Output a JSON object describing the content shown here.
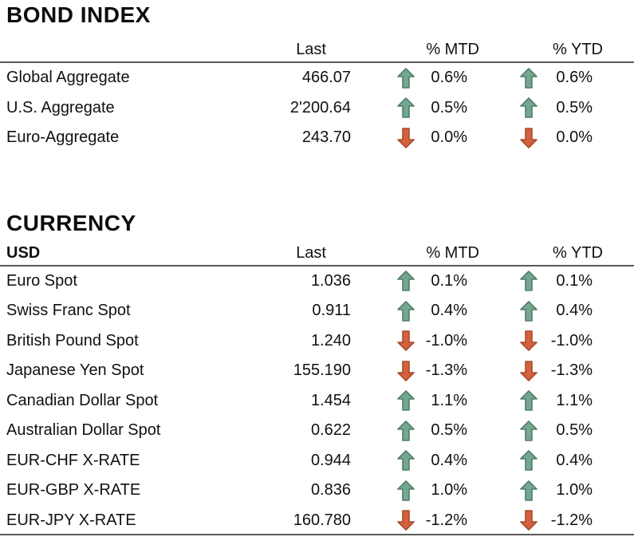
{
  "colors": {
    "up_fill": "#74A690",
    "up_stroke": "#4F7F69",
    "down_fill": "#D4613D",
    "down_stroke": "#A84C2E",
    "rule": "#595959"
  },
  "bond_index": {
    "title": "BOND INDEX",
    "columns": {
      "last": "Last",
      "mtd": "% MTD",
      "ytd": "% YTD"
    },
    "rows": [
      {
        "name": "Global Aggregate",
        "last": "466.07",
        "mtd": "0.6%",
        "mtd_dir": "up",
        "ytd": "0.6%",
        "ytd_dir": "up"
      },
      {
        "name": "U.S. Aggregate",
        "last": "2'200.64",
        "mtd": "0.5%",
        "mtd_dir": "up",
        "ytd": "0.5%",
        "ytd_dir": "up"
      },
      {
        "name": "Euro-Aggregate",
        "last": "243.70",
        "mtd": "0.0%",
        "mtd_dir": "down",
        "ytd": "0.0%",
        "ytd_dir": "down"
      }
    ]
  },
  "currency": {
    "title": "CURRENCY",
    "base": "USD",
    "columns": {
      "last": "Last",
      "mtd": "% MTD",
      "ytd": "% YTD"
    },
    "rows": [
      {
        "name": "Euro Spot",
        "last": "1.036",
        "mtd": "0.1%",
        "mtd_dir": "up",
        "ytd": "0.1%",
        "ytd_dir": "up"
      },
      {
        "name": "Swiss Franc Spot",
        "last": "0.911",
        "mtd": "0.4%",
        "mtd_dir": "up",
        "ytd": "0.4%",
        "ytd_dir": "up"
      },
      {
        "name": "British Pound Spot",
        "last": "1.240",
        "mtd": "-1.0%",
        "mtd_dir": "down",
        "ytd": "-1.0%",
        "ytd_dir": "down"
      },
      {
        "name": "Japanese Yen Spot",
        "last": "155.190",
        "mtd": "-1.3%",
        "mtd_dir": "down",
        "ytd": "-1.3%",
        "ytd_dir": "down"
      },
      {
        "name": "Canadian Dollar Spot",
        "last": "1.454",
        "mtd": "1.1%",
        "mtd_dir": "up",
        "ytd": "1.1%",
        "ytd_dir": "up"
      },
      {
        "name": "Australian Dollar Spot",
        "last": "0.622",
        "mtd": "0.5%",
        "mtd_dir": "up",
        "ytd": "0.5%",
        "ytd_dir": "up"
      },
      {
        "name": "EUR-CHF X-RATE",
        "last": "0.944",
        "mtd": "0.4%",
        "mtd_dir": "up",
        "ytd": "0.4%",
        "ytd_dir": "up"
      },
      {
        "name": "EUR-GBP X-RATE",
        "last": "0.836",
        "mtd": "1.0%",
        "mtd_dir": "up",
        "ytd": "1.0%",
        "ytd_dir": "up"
      },
      {
        "name": "EUR-JPY X-RATE",
        "last": "160.780",
        "mtd": "-1.2%",
        "mtd_dir": "down",
        "ytd": "-1.2%",
        "ytd_dir": "down"
      }
    ]
  }
}
